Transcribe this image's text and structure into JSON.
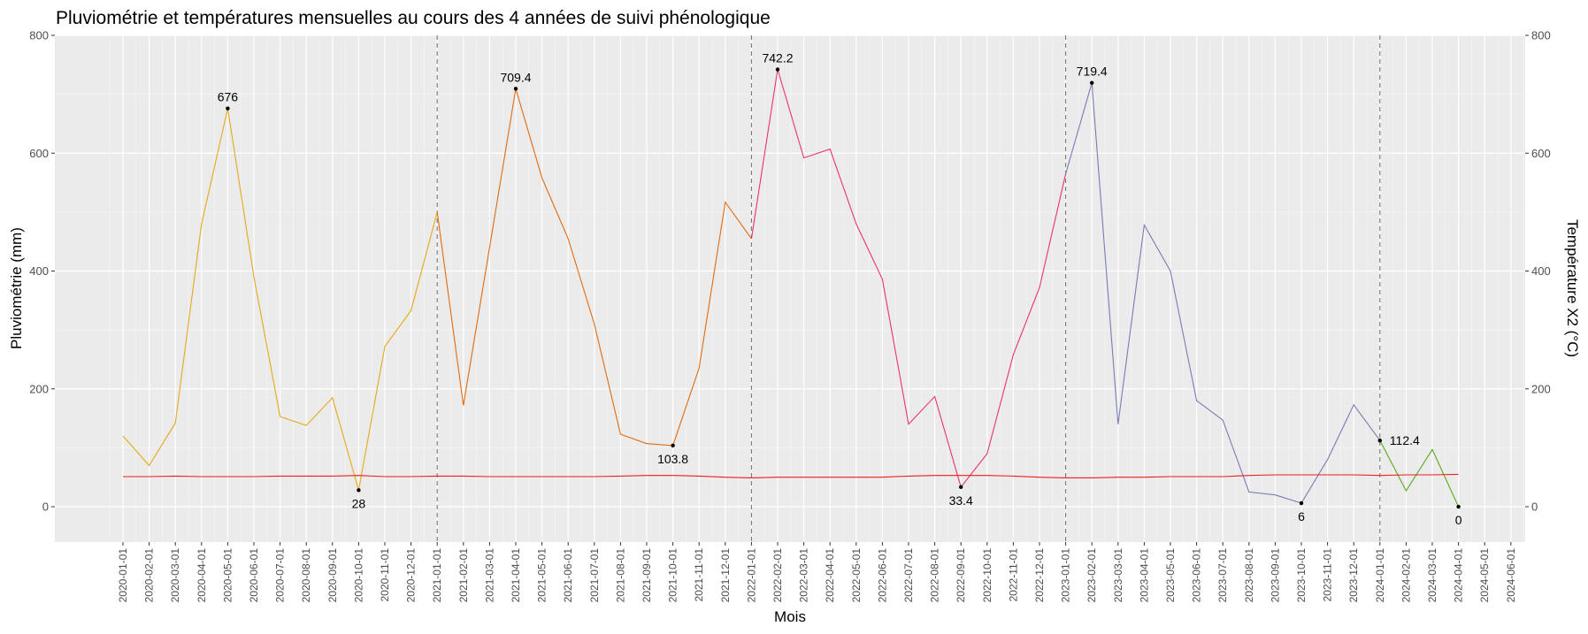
{
  "chart_data": {
    "type": "line",
    "title": "Pluviométrie et températures mensuelles au cours des 4 années de suivi phénologique",
    "xlabel": "Mois",
    "ylabel": "Pluviométrie (mm)",
    "y2label": "Température X2 (°C)",
    "ylim": [
      -60,
      800
    ],
    "yticks": [
      0,
      200,
      400,
      600,
      800
    ],
    "x_ticks": [
      "2020-01-01",
      "2020-02-01",
      "2020-03-01",
      "2020-04-01",
      "2020-05-01",
      "2020-06-01",
      "2020-07-01",
      "2020-08-01",
      "2020-09-01",
      "2020-10-01",
      "2020-11-01",
      "2020-12-01",
      "2021-01-01",
      "2021-02-01",
      "2021-03-01",
      "2021-04-01",
      "2021-05-01",
      "2021-06-01",
      "2021-07-01",
      "2021-08-01",
      "2021-09-01",
      "2021-10-01",
      "2021-11-01",
      "2021-12-01",
      "2022-01-01",
      "2022-02-01",
      "2022-03-01",
      "2022-04-01",
      "2022-05-01",
      "2022-06-01",
      "2022-07-01",
      "2022-08-01",
      "2022-09-01",
      "2022-10-01",
      "2022-11-01",
      "2022-12-01",
      "2023-01-01",
      "2023-02-01",
      "2023-03-01",
      "2023-04-01",
      "2023-05-01",
      "2023-06-01",
      "2023-07-01",
      "2023-08-01",
      "2023-09-01",
      "2023-10-01",
      "2023-11-01",
      "2023-12-01",
      "2024-01-01",
      "2024-02-01",
      "2024-03-01",
      "2024-04-01",
      "2024-05-01",
      "2024-06-01"
    ],
    "grid": true,
    "background": "#ebebeb",
    "vlines": [
      "2021-01-01",
      "2022-01-01",
      "2023-01-01",
      "2024-01-01"
    ],
    "series": [
      {
        "color": "#e6a817",
        "x": [
          "2020-01-01",
          "2020-02-01",
          "2020-03-01",
          "2020-04-01",
          "2020-05-01",
          "2020-06-01",
          "2020-07-01",
          "2020-08-01",
          "2020-09-01",
          "2020-10-01",
          "2020-11-01",
          "2020-12-01",
          "2021-01-01"
        ],
        "values": [
          120,
          70,
          142,
          480,
          676,
          390,
          153,
          138,
          185,
          28,
          272,
          333,
          500
        ]
      },
      {
        "color": "#e06b10",
        "x": [
          "2021-01-01",
          "2021-02-01",
          "2021-03-01",
          "2021-04-01",
          "2021-05-01",
          "2021-06-01",
          "2021-07-01",
          "2021-08-01",
          "2021-09-01",
          "2021-10-01",
          "2021-11-01",
          "2021-12-01",
          "2022-01-01"
        ],
        "values": [
          500,
          172,
          440,
          709.4,
          558,
          455,
          310,
          123,
          107,
          103.8,
          235,
          517,
          455
        ]
      },
      {
        "color": "#e8326e",
        "x": [
          "2022-01-01",
          "2022-02-01",
          "2022-03-01",
          "2022-04-01",
          "2022-05-01",
          "2022-06-01",
          "2022-07-01",
          "2022-08-01",
          "2022-09-01",
          "2022-10-01",
          "2022-11-01",
          "2022-12-01",
          "2023-01-01"
        ],
        "values": [
          455,
          742.2,
          592,
          607,
          480,
          386,
          140,
          187,
          33.4,
          90,
          258,
          372,
          565
        ]
      },
      {
        "color": "#7a7ab4",
        "x": [
          "2023-01-01",
          "2023-02-01",
          "2023-03-01",
          "2023-04-01",
          "2023-05-01",
          "2023-06-01",
          "2023-07-01",
          "2023-08-01",
          "2023-09-01",
          "2023-10-01",
          "2023-11-01",
          "2023-12-01",
          "2024-01-01"
        ],
        "values": [
          565,
          719.4,
          140,
          478,
          400,
          180,
          147,
          25,
          20,
          6,
          80,
          173,
          112.4
        ]
      },
      {
        "color": "#5aaa1e",
        "x": [
          "2024-01-01",
          "2024-02-01",
          "2024-03-01",
          "2024-04-01"
        ],
        "values": [
          112.4,
          27,
          97,
          0
        ]
      },
      {
        "color": "#ee1c1c",
        "x": [
          "2020-01-01",
          "2020-02-01",
          "2020-03-01",
          "2020-04-01",
          "2020-05-01",
          "2020-06-01",
          "2020-07-01",
          "2020-08-01",
          "2020-09-01",
          "2020-10-01",
          "2020-11-01",
          "2020-12-01",
          "2021-01-01",
          "2021-02-01",
          "2021-03-01",
          "2021-04-01",
          "2021-05-01",
          "2021-06-01",
          "2021-07-01",
          "2021-08-01",
          "2021-09-01",
          "2021-10-01",
          "2021-11-01",
          "2021-12-01",
          "2022-01-01",
          "2022-02-01",
          "2022-03-01",
          "2022-04-01",
          "2022-05-01",
          "2022-06-01",
          "2022-07-01",
          "2022-08-01",
          "2022-09-01",
          "2022-10-01",
          "2022-11-01",
          "2022-12-01",
          "2023-01-01",
          "2023-02-01",
          "2023-03-01",
          "2023-04-01",
          "2023-05-01",
          "2023-06-01",
          "2023-07-01",
          "2023-08-01",
          "2023-09-01",
          "2023-10-01",
          "2023-11-01",
          "2023-12-01",
          "2024-01-01",
          "2024-02-01",
          "2024-03-01",
          "2024-04-01"
        ],
        "values": [
          51,
          51,
          52,
          51,
          51,
          51,
          52,
          52,
          52,
          53,
          51,
          51,
          52,
          52,
          51,
          51,
          51,
          51,
          51,
          52,
          53,
          53,
          52,
          50,
          49,
          50,
          50,
          50,
          50,
          50,
          52,
          53,
          53,
          53,
          52,
          50,
          49,
          49,
          50,
          50,
          51,
          51,
          51,
          53,
          54,
          54,
          54,
          54,
          53,
          54,
          54,
          55
        ]
      }
    ],
    "annotations": [
      {
        "x": "2020-05-01",
        "y": 676,
        "label": "676",
        "pos": "above"
      },
      {
        "x": "2020-10-01",
        "y": 28,
        "label": "28",
        "pos": "below"
      },
      {
        "x": "2021-04-01",
        "y": 709.4,
        "label": "709.4",
        "pos": "above"
      },
      {
        "x": "2021-10-01",
        "y": 103.8,
        "label": "103.8",
        "pos": "below"
      },
      {
        "x": "2022-02-01",
        "y": 742.2,
        "label": "742.2",
        "pos": "above"
      },
      {
        "x": "2022-09-01",
        "y": 33.4,
        "label": "33.4",
        "pos": "below"
      },
      {
        "x": "2023-02-01",
        "y": 719.4,
        "label": "719.4",
        "pos": "above"
      },
      {
        "x": "2023-10-01",
        "y": 6,
        "label": "6",
        "pos": "below"
      },
      {
        "x": "2024-01-01",
        "y": 112.4,
        "label": "112.4",
        "pos": "right"
      },
      {
        "x": "2024-04-01",
        "y": 0,
        "label": "0",
        "pos": "below"
      }
    ]
  }
}
